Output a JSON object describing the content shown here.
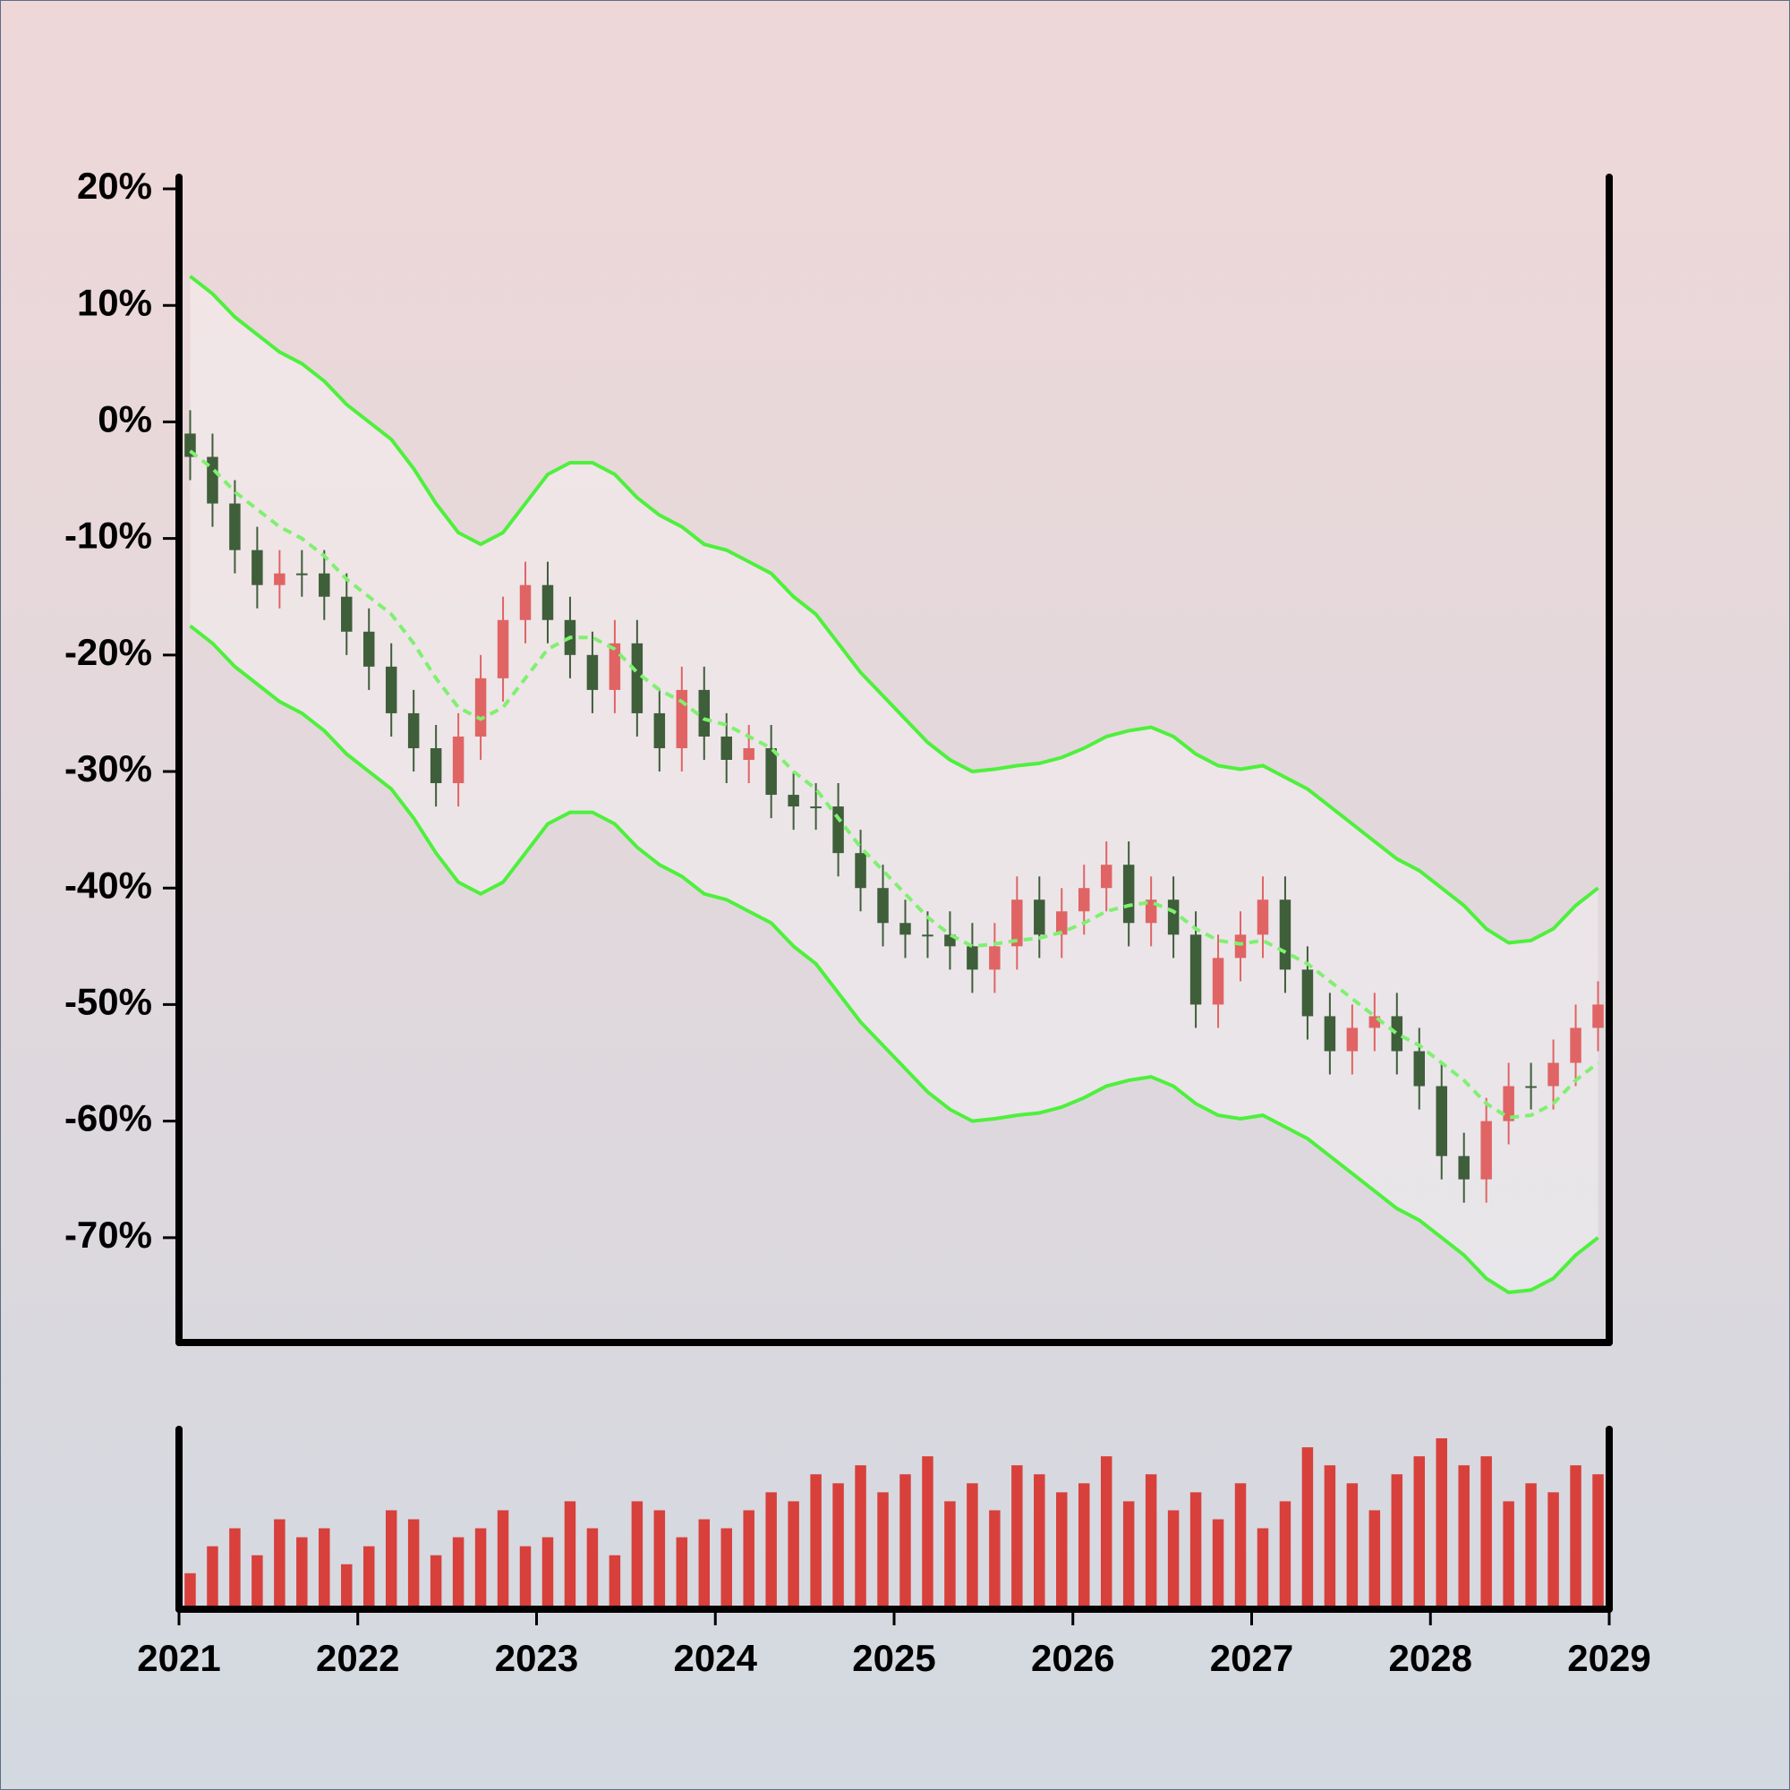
{
  "chart_data": {
    "type": "candlestick",
    "x": [
      2021.0625,
      2021.1875,
      2021.3125,
      2021.4375,
      2021.5625,
      2021.6875,
      2021.8125,
      2021.9375,
      2022.0625,
      2022.1875,
      2022.3125,
      2022.4375,
      2022.5625,
      2022.6875,
      2022.8125,
      2022.9375,
      2023.0625,
      2023.1875,
      2023.3125,
      2023.4375,
      2023.5625,
      2023.6875,
      2023.8125,
      2023.9375,
      2024.0625,
      2024.1875,
      2024.3125,
      2024.4375,
      2024.5625,
      2024.6875,
      2024.8125,
      2024.9375,
      2025.0625,
      2025.1875,
      2025.3125,
      2025.4375,
      2025.5625,
      2025.6875,
      2025.8125,
      2025.9375,
      2026.0625,
      2026.1875,
      2026.3125,
      2026.4375,
      2026.5625,
      2026.6875,
      2026.8125,
      2026.9375,
      2027.0625,
      2027.1875,
      2027.3125,
      2027.4375,
      2027.5625,
      2027.6875,
      2027.8125,
      2027.9375,
      2028.0625,
      2028.1875,
      2028.3125,
      2028.4375,
      2028.5625,
      2028.6875,
      2028.8125,
      2028.9375
    ],
    "open": [
      -1,
      -3,
      -7,
      -11,
      -14,
      -13,
      -13,
      -15,
      -18,
      -21,
      -25,
      -28,
      -31,
      -27,
      -22,
      -17,
      -14,
      -17,
      -20,
      -23,
      -19,
      -25,
      -28,
      -23,
      -27,
      -29,
      -28,
      -32,
      -33,
      -33,
      -37,
      -40,
      -43,
      -44,
      -44,
      -45,
      -47,
      -45,
      -41,
      -44,
      -42,
      -40,
      -38,
      -43,
      -41,
      -44,
      -50,
      -46,
      -44,
      -41,
      -47,
      -51,
      -54,
      -52,
      -51,
      -54,
      -57,
      -63,
      -65,
      -60,
      -57,
      -57,
      -55,
      -52
    ],
    "high": [
      1,
      -1,
      -5,
      -9,
      -11,
      -11,
      -11,
      -13,
      -16,
      -19,
      -23,
      -26,
      -25,
      -20,
      -15,
      -12,
      -12,
      -15,
      -18,
      -17,
      -17,
      -23,
      -21,
      -21,
      -25,
      -26,
      -26,
      -30,
      -31,
      -31,
      -35,
      -38,
      -41,
      -42,
      -42,
      -43,
      -43,
      -39,
      -39,
      -40,
      -38,
      -36,
      -36,
      -39,
      -39,
      -42,
      -44,
      -42,
      -39,
      -39,
      -45,
      -49,
      -50,
      -49,
      -49,
      -52,
      -55,
      -61,
      -58,
      -55,
      -55,
      -53,
      -50,
      -48
    ],
    "low": [
      -5,
      -9,
      -13,
      -16,
      -16,
      -15,
      -17,
      -20,
      -23,
      -27,
      -30,
      -33,
      -33,
      -29,
      -24,
      -19,
      -19,
      -22,
      -25,
      -25,
      -27,
      -30,
      -30,
      -29,
      -31,
      -31,
      -34,
      -35,
      -35,
      -39,
      -42,
      -45,
      -46,
      -46,
      -47,
      -49,
      -49,
      -47,
      -46,
      -46,
      -44,
      -42,
      -45,
      -45,
      -46,
      -52,
      -52,
      -48,
      -46,
      -49,
      -53,
      -56,
      -56,
      -54,
      -56,
      -59,
      -65,
      -67,
      -67,
      -62,
      -59,
      -59,
      -57,
      -54
    ],
    "close": [
      -3,
      -7,
      -11,
      -14,
      -13,
      -13,
      -15,
      -18,
      -21,
      -25,
      -28,
      -31,
      -27,
      -22,
      -17,
      -14,
      -17,
      -20,
      -23,
      -19,
      -25,
      -28,
      -23,
      -27,
      -29,
      -28,
      -32,
      -33,
      -33,
      -37,
      -40,
      -43,
      -44,
      -44,
      -45,
      -47,
      -45,
      -41,
      -44,
      -42,
      -40,
      -38,
      -43,
      -41,
      -44,
      -50,
      -46,
      -44,
      -41,
      -47,
      -51,
      -54,
      -52,
      -51,
      -54,
      -57,
      -63,
      -65,
      -60,
      -57,
      -57,
      -55,
      -52,
      -50
    ],
    "up_color": "#e06464",
    "down_color": "#3f5e3a",
    "bands": [
      {
        "values": [
          12.5,
          11,
          9,
          7.5,
          6,
          5,
          3.5,
          1.5,
          0,
          -1.5,
          -4,
          -7,
          -9.5,
          -10.5,
          -9.5,
          -7,
          -4.5,
          -3.5,
          -3.5,
          -4.5,
          -6.5,
          -8,
          -9,
          -10.5,
          -11,
          -12,
          -13,
          -15,
          -16.5,
          -19,
          -21.5,
          -23.5,
          -25.5,
          -27.5,
          -29,
          -30,
          -29.8,
          -29.5,
          -29.3,
          -28.8,
          -28,
          -27,
          -26.5,
          -26.2,
          -27,
          -28.5,
          -29.5,
          -29.8,
          -29.5,
          -30.5,
          -31.5,
          -33,
          -34.5,
          -36,
          -37.5,
          -38.5,
          -40,
          -41.5,
          -43.5,
          -44.7,
          -44.5,
          -43.5,
          -41.5,
          -40
        ],
        "color": "#4ef03c",
        "dashed": false
      },
      {
        "values": [
          -2.5,
          -4,
          -6,
          -7.5,
          -9,
          -10,
          -11.5,
          -13.5,
          -15,
          -16.5,
          -19,
          -22,
          -24.5,
          -25.5,
          -24.5,
          -22,
          -19.5,
          -18.5,
          -18.5,
          -19.5,
          -21.5,
          -23,
          -24,
          -25.5,
          -26,
          -27,
          -28,
          -30,
          -31.5,
          -34,
          -36.5,
          -38.5,
          -40.5,
          -42.5,
          -44,
          -45,
          -44.8,
          -44.5,
          -44.3,
          -43.8,
          -43,
          -42,
          -41.5,
          -41.2,
          -42,
          -43.5,
          -44.5,
          -44.8,
          -44.5,
          -45.5,
          -46.5,
          -48,
          -49.5,
          -51,
          -52.5,
          -53.5,
          -55,
          -56.5,
          -58.5,
          -59.7,
          -59.5,
          -58.5,
          -56.5,
          -55
        ],
        "color": "#80f070",
        "dashed": true
      },
      {
        "values": [
          -17.5,
          -19,
          -21,
          -22.5,
          -24,
          -25,
          -26.5,
          -28.5,
          -30,
          -31.5,
          -34,
          -37,
          -39.5,
          -40.5,
          -39.5,
          -37,
          -34.5,
          -33.5,
          -33.5,
          -34.5,
          -36.5,
          -38,
          -39,
          -40.5,
          -41,
          -42,
          -43,
          -45,
          -46.5,
          -49,
          -51.5,
          -53.5,
          -55.5,
          -57.5,
          -59,
          -60,
          -59.8,
          -59.5,
          -59.3,
          -58.8,
          -58,
          -57,
          -56.5,
          -56.2,
          -57,
          -58.5,
          -59.5,
          -59.8,
          -59.5,
          -60.5,
          -61.5,
          -63,
          -64.5,
          -66,
          -67.5,
          -68.5,
          -70,
          -71.5,
          -73.5,
          -74.7,
          -74.5,
          -73.5,
          -71.5,
          -70
        ],
        "color": "#4ef03c",
        "dashed": false
      }
    ],
    "volume": [
      20,
      35,
      45,
      30,
      50,
      40,
      45,
      25,
      35,
      55,
      50,
      30,
      40,
      45,
      55,
      35,
      40,
      60,
      45,
      30,
      60,
      55,
      40,
      50,
      45,
      55,
      65,
      60,
      75,
      70,
      80,
      65,
      75,
      85,
      60,
      70,
      55,
      80,
      75,
      65,
      70,
      85,
      60,
      75,
      55,
      65,
      50,
      70,
      45,
      60,
      90,
      80,
      70,
      55,
      75,
      85,
      95,
      80,
      85,
      60,
      70,
      65,
      80,
      75
    ],
    "volume_color": "#d8403c",
    "volume_lim": [
      0,
      100
    ],
    "xlim": [
      2021,
      2029
    ],
    "xticks": [
      2021,
      2022,
      2023,
      2024,
      2025,
      2026,
      2027,
      2028,
      2029
    ],
    "ylim": [
      -79,
      21
    ],
    "yticks": [
      {
        "value": 20,
        "label": "20%"
      },
      {
        "value": 10,
        "label": "10%"
      },
      {
        "value": 0,
        "label": "0%"
      },
      {
        "value": -10,
        "label": "-10%"
      },
      {
        "value": -20,
        "label": "-20%"
      },
      {
        "value": -30,
        "label": "-30%"
      },
      {
        "value": -40,
        "label": "-40%"
      },
      {
        "value": -50,
        "label": "-50%"
      },
      {
        "value": -60,
        "label": "-60%"
      },
      {
        "value": -70,
        "label": "-70%"
      }
    ]
  }
}
